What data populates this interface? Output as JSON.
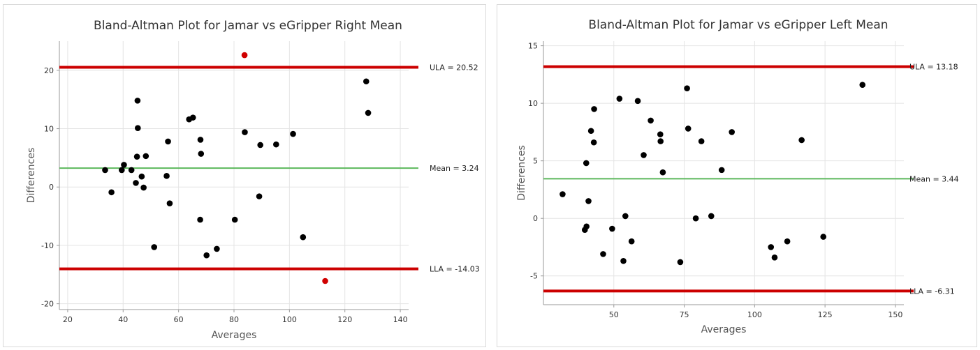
{
  "colors": {
    "limit_line": "#cc0000",
    "mean_line": "#5cb85c",
    "point": "#000000",
    "outlier_point": "#d00000",
    "grid": "#e4e4e4",
    "axis": "#9a9a9a"
  },
  "chart_data": [
    {
      "type": "scatter",
      "title": "Bland-Altman Plot for Jamar vs eGripper Right Mean",
      "xlabel": "Averages",
      "ylabel": "Differences",
      "xlim": [
        17,
        143
      ],
      "ylim": [
        -21,
        25
      ],
      "xticks": [
        20,
        40,
        60,
        80,
        100,
        120,
        140
      ],
      "yticks": [
        -20,
        -10,
        0,
        10,
        20
      ],
      "grid": true,
      "reference_lines": [
        {
          "kind": "ula",
          "label": "ULA = 20.52",
          "value": 20.52
        },
        {
          "kind": "mean",
          "label": "Mean = 3.24",
          "value": 3.24
        },
        {
          "kind": "lla",
          "label": "LLA = -14.03",
          "value": -14.03
        }
      ],
      "points": [
        [
          33.5,
          2.9
        ],
        [
          35.8,
          -0.9
        ],
        [
          39.5,
          2.9
        ],
        [
          40.3,
          3.8
        ],
        [
          43,
          2.9
        ],
        [
          44.6,
          0.7
        ],
        [
          45,
          5.2
        ],
        [
          45.2,
          14.8
        ],
        [
          45.3,
          10.1
        ],
        [
          46.7,
          1.8
        ],
        [
          47.4,
          -0.1
        ],
        [
          48.2,
          5.3
        ],
        [
          51.2,
          -10.3
        ],
        [
          55.7,
          1.9
        ],
        [
          56.2,
          7.8
        ],
        [
          56.8,
          -2.8
        ],
        [
          63.8,
          11.6
        ],
        [
          65.2,
          11.9
        ],
        [
          67.8,
          -5.6
        ],
        [
          67.9,
          8.1
        ],
        [
          68.1,
          5.7
        ],
        [
          70.1,
          -11.7
        ],
        [
          73.8,
          -10.6
        ],
        [
          80.3,
          -5.6
        ],
        [
          83.9,
          9.4
        ],
        [
          89.1,
          -1.6
        ],
        [
          89.5,
          7.2
        ],
        [
          95.2,
          7.3
        ],
        [
          101.3,
          9.1
        ],
        [
          104.9,
          -8.6
        ],
        [
          127.7,
          18.1
        ],
        [
          128.4,
          12.7
        ]
      ],
      "outliers": [
        [
          83.8,
          22.6
        ],
        [
          112.9,
          -16.1
        ]
      ]
    },
    {
      "type": "scatter",
      "title": "Bland-Altman Plot for Jamar vs eGripper Left Mean",
      "xlabel": "Averages",
      "ylabel": "Differences",
      "xlim": [
        25,
        153
      ],
      "ylim": [
        -7.5,
        15.4
      ],
      "xticks": [
        50,
        75,
        100,
        125,
        150
      ],
      "yticks": [
        -5,
        0,
        5,
        10,
        15
      ],
      "grid": true,
      "reference_lines": [
        {
          "kind": "ula",
          "label": "ULA = 13.18",
          "value": 13.18
        },
        {
          "kind": "mean",
          "label": "Mean = 3.44",
          "value": 3.44
        },
        {
          "kind": "lla",
          "label": "LLA = -6.31",
          "value": -6.31
        }
      ],
      "points": [
        [
          31.8,
          2.1
        ],
        [
          39.7,
          -1.0
        ],
        [
          40.3,
          -0.7
        ],
        [
          40.2,
          4.8
        ],
        [
          41,
          1.5
        ],
        [
          41.9,
          7.6
        ],
        [
          42.9,
          6.6
        ],
        [
          43,
          9.5
        ],
        [
          46.2,
          -3.1
        ],
        [
          49.4,
          -0.9
        ],
        [
          52,
          10.4
        ],
        [
          53.4,
          -3.7
        ],
        [
          54.1,
          0.2
        ],
        [
          56.3,
          -2.0
        ],
        [
          58.5,
          10.2
        ],
        [
          60.6,
          5.5
        ],
        [
          63.1,
          8.5
        ],
        [
          66.5,
          7.3
        ],
        [
          66.6,
          6.7
        ],
        [
          67.4,
          4.0
        ],
        [
          73.6,
          -3.8
        ],
        [
          76,
          11.3
        ],
        [
          76.4,
          7.8
        ],
        [
          79.1,
          0.0
        ],
        [
          81.1,
          6.7
        ],
        [
          84.6,
          0.2
        ],
        [
          88.3,
          4.2
        ],
        [
          91.9,
          7.5
        ],
        [
          105.8,
          -2.5
        ],
        [
          107.1,
          -3.4
        ],
        [
          111.6,
          -2.0
        ],
        [
          116.7,
          6.8
        ],
        [
          124.4,
          -1.6
        ],
        [
          138.3,
          11.6
        ]
      ],
      "outliers": []
    }
  ]
}
